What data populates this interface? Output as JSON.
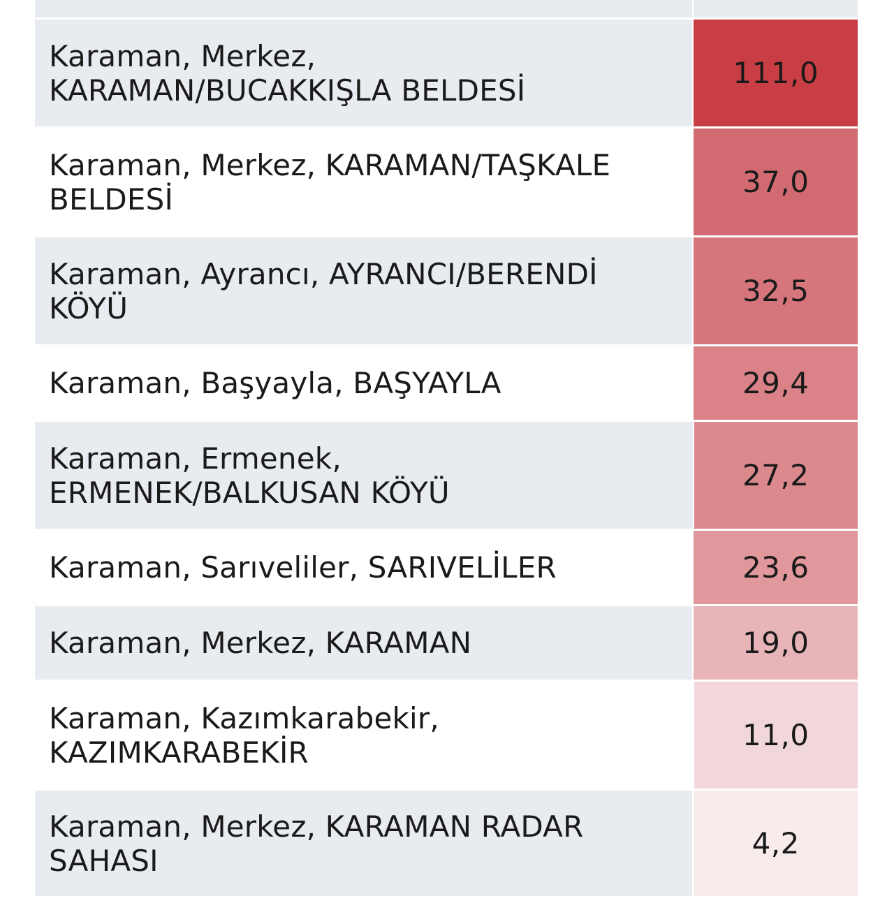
{
  "table": {
    "rows": [
      {
        "name": "",
        "value": "",
        "shade": true,
        "bg": "#e8ebf0",
        "stub": true
      },
      {
        "name": "Karaman, Merkez, KARAMAN/BUCAKKIŞLA BELDESİ",
        "value": "111,0",
        "shade": true,
        "bg": "#c93d44"
      },
      {
        "name": "Karaman, Merkez, KARAMAN/TAŞKALE BELDESİ",
        "value": "37,0",
        "shade": false,
        "bg": "#d26b71"
      },
      {
        "name": "Karaman, Ayrancı, AYRANCI/BERENDİ KÖYÜ",
        "value": "32,5",
        "shade": true,
        "bg": "#d6767c"
      },
      {
        "name": "Karaman, Başyayla, BAŞYAYLA",
        "value": "29,4",
        "shade": false,
        "bg": "#da8287"
      },
      {
        "name": "Karaman, Ermenek, ERMENEK/BALKUSAN KÖYÜ",
        "value": "27,2",
        "shade": true,
        "bg": "#dc898e"
      },
      {
        "name": "Karaman, Sarıveliler, SARIVELİLER",
        "value": "23,6",
        "shade": false,
        "bg": "#e0989c"
      },
      {
        "name": "Karaman, Merkez, KARAMAN",
        "value": "19,0",
        "shade": true,
        "bg": "#e7b5b8"
      },
      {
        "name": "Karaman, Kazımkarabekir, KAZIMKARABEKİR",
        "value": "11,0",
        "shade": false,
        "bg": "#f1d7d9"
      },
      {
        "name": "Karaman, Merkez, KARAMAN RADAR SAHASI",
        "value": "4,2",
        "shade": true,
        "bg": "#f8ebec"
      }
    ]
  }
}
